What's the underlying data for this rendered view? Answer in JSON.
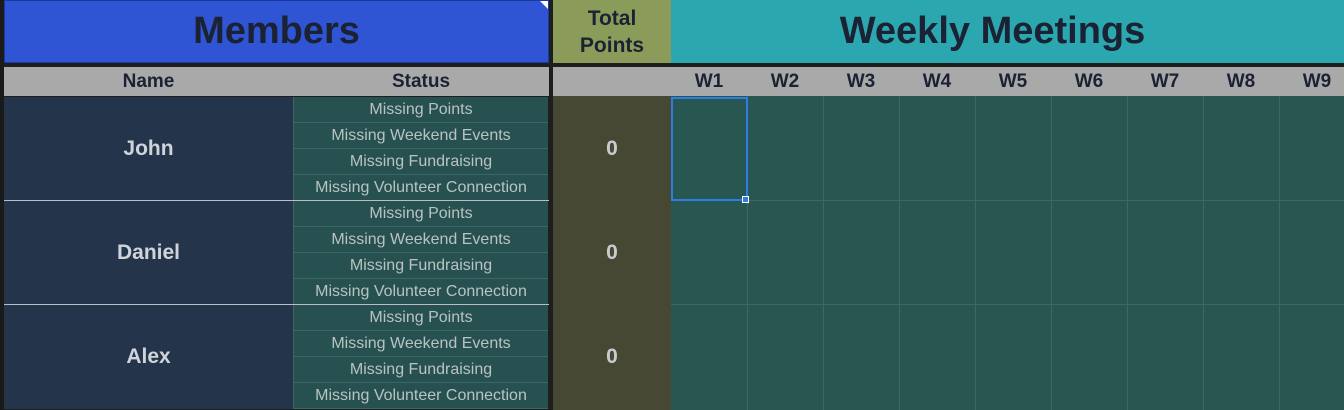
{
  "header": {
    "members": "Members",
    "total_points": "Total\nPoints",
    "weekly_meetings": "Weekly Meetings"
  },
  "subheader": {
    "name": "Name",
    "status": "Status",
    "weeks": [
      "W1",
      "W2",
      "W3",
      "W4",
      "W5",
      "W6",
      "W7",
      "W8",
      "W9"
    ]
  },
  "members": [
    {
      "name": "John",
      "total": "0",
      "statuses": [
        "Missing Points",
        "Missing Weekend Events",
        "Missing Fundraising",
        "Missing Volunteer Connection"
      ]
    },
    {
      "name": "Daniel",
      "total": "0",
      "statuses": [
        "Missing Points",
        "Missing Weekend Events",
        "Missing Fundraising",
        "Missing Volunteer Connection"
      ]
    },
    {
      "name": "Alex",
      "total": "0",
      "statuses": [
        "Missing Points",
        "Missing Weekend Events",
        "Missing Fundraising",
        "Missing Volunteer Connection"
      ]
    }
  ],
  "colors": {
    "members_header": "#2f55d4",
    "total_header": "#8b9c5a",
    "weekly_header": "#2ba7b0",
    "selection": "#2e7ce6"
  },
  "selection": {
    "cell": "W1 John"
  }
}
